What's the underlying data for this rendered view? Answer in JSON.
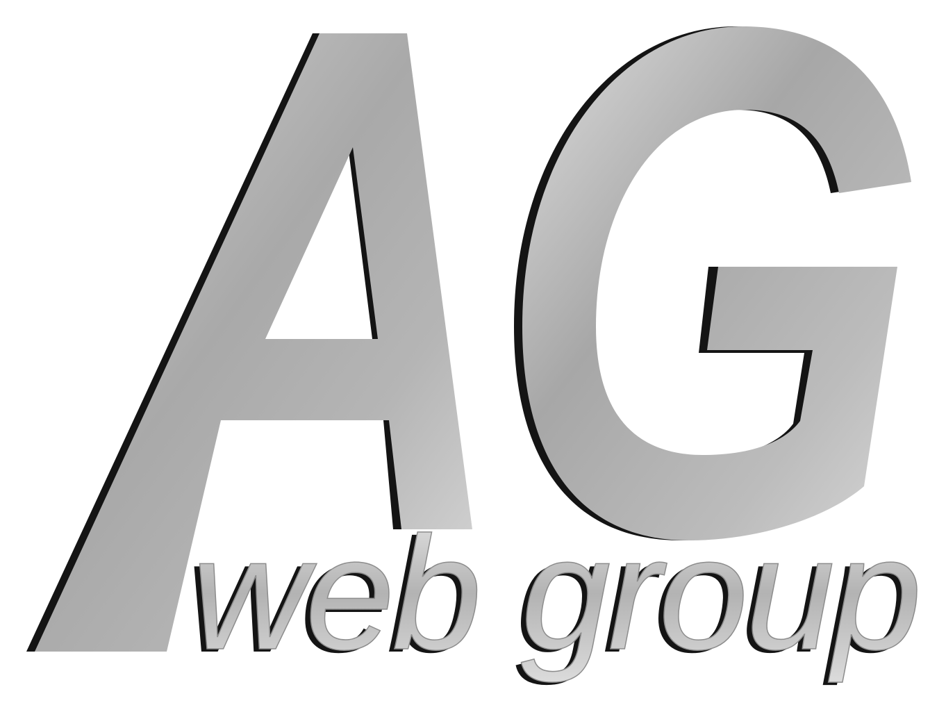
{
  "logo": {
    "monogram": "AG",
    "tagline": "web group",
    "colors": {
      "background": "#ffffff",
      "letter_light": "#d9d9d9",
      "letter_mid": "#a8a8a8",
      "shadow": "#141414"
    }
  }
}
